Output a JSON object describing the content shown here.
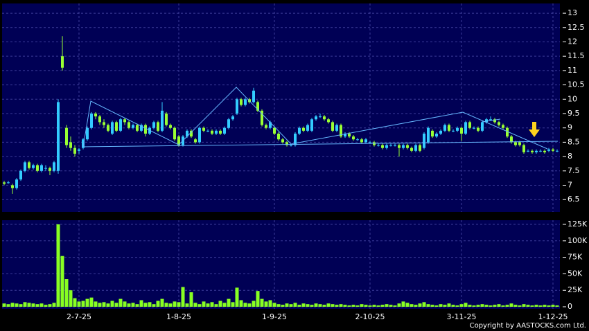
{
  "chart_data": [
    {
      "type": "candlestick",
      "up_color": "#33ccff",
      "down_color": "#99ff33",
      "grid": true,
      "ylim": [
        6.07,
        13.34
      ],
      "yticks": [
        6.5,
        7,
        7.5,
        8,
        8.5,
        9,
        9.5,
        10,
        10.5,
        11,
        11.5,
        12,
        12.5,
        13
      ],
      "ohlc": [
        [
          7.1,
          7.15,
          7.0,
          7.05
        ],
        [
          7.1,
          7.15,
          7.05,
          7.1
        ],
        [
          7.0,
          7.05,
          6.7,
          6.9
        ],
        [
          6.9,
          7.25,
          6.85,
          7.2
        ],
        [
          7.2,
          7.55,
          7.15,
          7.5
        ],
        [
          7.5,
          7.85,
          7.45,
          7.8
        ],
        [
          7.8,
          7.85,
          7.55,
          7.6
        ],
        [
          7.6,
          7.75,
          7.55,
          7.7
        ],
        [
          7.7,
          7.75,
          7.45,
          7.5
        ],
        [
          7.5,
          7.75,
          7.45,
          7.7
        ],
        [
          7.6,
          7.7,
          7.5,
          7.6
        ],
        [
          7.6,
          7.65,
          7.35,
          7.5
        ],
        [
          7.5,
          7.85,
          7.45,
          7.8
        ],
        [
          7.5,
          10.0,
          7.4,
          9.9
        ],
        [
          11.5,
          12.2,
          11.0,
          11.1
        ],
        [
          9.0,
          9.1,
          8.3,
          8.4
        ],
        [
          8.5,
          8.7,
          8.2,
          8.3
        ],
        [
          8.3,
          8.4,
          8.0,
          8.1
        ],
        [
          8.2,
          8.3,
          8.1,
          8.25
        ],
        [
          8.3,
          8.65,
          8.25,
          8.6
        ],
        [
          8.6,
          9.05,
          8.55,
          9.0
        ],
        [
          9.0,
          9.55,
          8.95,
          9.5
        ],
        [
          9.5,
          9.55,
          9.3,
          9.4
        ],
        [
          9.4,
          9.45,
          9.1,
          9.2
        ],
        [
          9.2,
          9.3,
          9.0,
          9.1
        ],
        [
          9.1,
          9.15,
          8.85,
          8.9
        ],
        [
          8.8,
          9.25,
          8.75,
          9.2
        ],
        [
          9.2,
          9.25,
          8.85,
          8.9
        ],
        [
          8.9,
          9.35,
          8.85,
          9.3
        ],
        [
          9.3,
          9.35,
          9.1,
          9.2
        ],
        [
          9.2,
          9.25,
          8.95,
          9.0
        ],
        [
          9.0,
          9.15,
          8.95,
          9.1
        ],
        [
          9.1,
          9.15,
          8.85,
          8.9
        ],
        [
          8.9,
          9.15,
          8.85,
          9.1
        ],
        [
          9.1,
          9.15,
          8.7,
          8.8
        ],
        [
          8.8,
          9.05,
          8.75,
          9.0
        ],
        [
          9.0,
          9.25,
          8.95,
          9.2
        ],
        [
          9.2,
          9.25,
          8.85,
          8.9
        ],
        [
          8.9,
          9.9,
          8.85,
          9.6
        ],
        [
          9.5,
          9.55,
          9.05,
          9.1
        ],
        [
          9.1,
          9.15,
          8.95,
          9.0
        ],
        [
          9.0,
          9.05,
          8.55,
          8.6
        ],
        [
          8.7,
          8.75,
          8.35,
          8.4
        ],
        [
          8.4,
          8.75,
          8.35,
          8.7
        ],
        [
          8.7,
          8.95,
          8.65,
          8.9
        ],
        [
          8.9,
          8.95,
          8.65,
          8.7
        ],
        [
          8.6,
          8.65,
          8.45,
          8.5
        ],
        [
          8.5,
          9.05,
          8.45,
          9.0
        ],
        [
          9.0,
          9.05,
          8.85,
          8.9
        ],
        [
          8.9,
          8.95,
          8.85,
          8.9
        ],
        [
          8.9,
          8.95,
          8.75,
          8.8
        ],
        [
          8.8,
          8.95,
          8.75,
          8.9
        ],
        [
          8.9,
          8.95,
          8.75,
          8.8
        ],
        [
          8.8,
          9.05,
          8.75,
          9.0
        ],
        [
          9.0,
          9.35,
          8.95,
          9.3
        ],
        [
          9.3,
          9.45,
          9.25,
          9.4
        ],
        [
          9.5,
          10.05,
          9.45,
          10.0
        ],
        [
          10.0,
          10.05,
          9.75,
          9.8
        ],
        [
          9.8,
          10.05,
          9.75,
          10.0
        ],
        [
          10.0,
          10.05,
          9.85,
          9.9
        ],
        [
          9.9,
          10.4,
          9.85,
          10.3
        ],
        [
          9.9,
          9.95,
          9.55,
          9.6
        ],
        [
          9.6,
          9.65,
          9.05,
          9.1
        ],
        [
          9.1,
          9.15,
          8.95,
          9.0
        ],
        [
          9.0,
          9.25,
          8.95,
          9.2
        ],
        [
          9.0,
          9.05,
          8.75,
          8.8
        ],
        [
          8.8,
          8.85,
          8.55,
          8.6
        ],
        [
          8.6,
          8.65,
          8.45,
          8.5
        ],
        [
          8.5,
          8.55,
          8.35,
          8.4
        ],
        [
          8.4,
          8.45,
          8.35,
          8.4
        ],
        [
          8.4,
          8.85,
          8.35,
          8.8
        ],
        [
          8.8,
          9.05,
          8.75,
          9.0
        ],
        [
          9.0,
          9.05,
          8.85,
          8.9
        ],
        [
          8.9,
          9.15,
          8.85,
          9.1
        ],
        [
          8.9,
          9.35,
          8.85,
          9.3
        ],
        [
          9.3,
          9.45,
          9.25,
          9.4
        ],
        [
          9.4,
          9.5,
          9.35,
          9.4
        ],
        [
          9.4,
          9.45,
          9.25,
          9.3
        ],
        [
          9.3,
          9.35,
          9.15,
          9.2
        ],
        [
          9.2,
          9.25,
          8.85,
          8.9
        ],
        [
          8.9,
          9.15,
          8.85,
          9.1
        ],
        [
          9.1,
          9.15,
          8.65,
          8.7
        ],
        [
          8.7,
          8.85,
          8.65,
          8.8
        ],
        [
          8.8,
          8.85,
          8.65,
          8.7
        ],
        [
          8.7,
          8.75,
          8.55,
          8.6
        ],
        [
          8.6,
          8.65,
          8.55,
          8.6
        ],
        [
          8.6,
          8.65,
          8.45,
          8.5
        ],
        [
          8.5,
          8.65,
          8.45,
          8.6
        ],
        [
          8.5,
          8.55,
          8.45,
          8.5
        ],
        [
          8.5,
          8.55,
          8.35,
          8.4
        ],
        [
          8.4,
          8.45,
          8.35,
          8.4
        ],
        [
          8.4,
          8.45,
          8.25,
          8.3
        ],
        [
          8.3,
          8.45,
          8.25,
          8.4
        ],
        [
          8.4,
          8.45,
          8.35,
          8.4
        ],
        [
          8.4,
          8.45,
          8.35,
          8.4
        ],
        [
          8.4,
          8.45,
          8.0,
          8.3
        ],
        [
          8.3,
          8.45,
          8.25,
          8.4
        ],
        [
          8.4,
          8.45,
          8.25,
          8.3
        ],
        [
          8.3,
          8.35,
          8.15,
          8.2
        ],
        [
          8.2,
          8.45,
          8.15,
          8.4
        ],
        [
          8.4,
          8.45,
          8.15,
          8.2
        ],
        [
          8.3,
          8.85,
          8.25,
          8.8
        ],
        [
          8.5,
          9.05,
          8.45,
          9.0
        ],
        [
          8.9,
          8.95,
          8.65,
          8.7
        ],
        [
          8.7,
          8.85,
          8.65,
          8.8
        ],
        [
          8.8,
          8.95,
          8.75,
          8.9
        ],
        [
          8.9,
          9.15,
          8.85,
          9.1
        ],
        [
          9.1,
          9.15,
          8.85,
          8.9
        ],
        [
          8.9,
          8.95,
          8.85,
          8.9
        ],
        [
          8.9,
          9.05,
          8.85,
          9.0
        ],
        [
          9.0,
          9.05,
          8.55,
          8.8
        ],
        [
          8.8,
          9.25,
          8.75,
          9.2
        ],
        [
          9.2,
          9.25,
          8.95,
          9.0
        ],
        [
          9.0,
          9.05,
          8.95,
          9.0
        ],
        [
          9.0,
          9.05,
          8.85,
          8.9
        ],
        [
          8.9,
          9.25,
          8.85,
          9.2
        ],
        [
          9.2,
          9.35,
          9.15,
          9.3
        ],
        [
          9.3,
          9.4,
          9.25,
          9.3
        ],
        [
          9.3,
          9.35,
          9.15,
          9.2
        ],
        [
          9.2,
          9.25,
          9.05,
          9.1
        ],
        [
          9.1,
          9.15,
          8.95,
          9.0
        ],
        [
          9.0,
          9.05,
          8.65,
          8.7
        ],
        [
          8.7,
          8.75,
          8.45,
          8.5
        ],
        [
          8.5,
          8.55,
          8.35,
          8.4
        ],
        [
          8.5,
          8.55,
          8.35,
          8.4
        ],
        [
          8.4,
          8.45,
          8.1,
          8.15
        ],
        [
          8.2,
          8.25,
          8.15,
          8.2
        ],
        [
          8.2,
          8.25,
          8.1,
          8.15
        ],
        [
          8.15,
          8.25,
          8.1,
          8.2
        ],
        [
          8.2,
          8.25,
          8.15,
          8.2
        ],
        [
          8.2,
          8.25,
          8.1,
          8.15
        ],
        [
          8.2,
          8.3,
          8.15,
          8.25
        ],
        [
          8.25,
          8.3,
          8.15,
          8.2
        ],
        [
          8.2,
          8.25,
          8.15,
          8.2
        ]
      ]
    },
    {
      "type": "bar",
      "color": "#88ff22",
      "grid": true,
      "ylim": [
        -3150,
        131300
      ],
      "yticks": [
        0,
        {
          "value": 25000,
          "label": "25K"
        },
        {
          "value": 50000,
          "label": "50K"
        },
        {
          "value": 75000,
          "label": "75K"
        },
        {
          "value": 100000,
          "label": "100K"
        },
        {
          "value": 125000,
          "label": "125K"
        }
      ],
      "categories": [
        null,
        null,
        null,
        null,
        null,
        null,
        null,
        null,
        null,
        null,
        null,
        null,
        null,
        null,
        null,
        null,
        null,
        null,
        "2-7-25",
        null,
        null,
        null,
        null,
        null,
        null,
        null,
        null,
        null,
        null,
        null,
        null,
        null,
        null,
        null,
        null,
        null,
        null,
        null,
        null,
        null,
        null,
        null,
        "1-8-25",
        null,
        null,
        null,
        null,
        null,
        null,
        null,
        null,
        null,
        null,
        null,
        null,
        null,
        null,
        null,
        null,
        null,
        null,
        null,
        null,
        null,
        null,
        "1-9-25",
        null,
        null,
        null,
        null,
        null,
        null,
        null,
        null,
        null,
        null,
        null,
        null,
        null,
        null,
        null,
        null,
        null,
        null,
        null,
        null,
        null,
        null,
        "2-10-25",
        null,
        null,
        null,
        null,
        null,
        null,
        null,
        null,
        null,
        null,
        null,
        null,
        null,
        null,
        null,
        null,
        null,
        null,
        null,
        null,
        null,
        "3-11-25",
        null,
        null,
        null,
        null,
        null,
        null,
        null,
        null,
        null,
        null,
        null,
        null,
        null,
        null,
        null,
        null,
        null,
        null,
        null,
        null,
        null,
        "1-12-25",
        null
      ],
      "values": [
        5000,
        4000,
        6000,
        5000,
        4000,
        7000,
        6000,
        5000,
        4000,
        5000,
        3000,
        4000,
        6000,
        125000,
        77000,
        42000,
        25000,
        13000,
        8000,
        9000,
        12000,
        14000,
        8000,
        6000,
        7000,
        5000,
        9000,
        6000,
        12000,
        8000,
        5000,
        6000,
        4000,
        10000,
        6000,
        7000,
        4000,
        9000,
        12000,
        6000,
        5000,
        8000,
        7000,
        30000,
        5000,
        22000,
        6000,
        4000,
        8000,
        5000,
        7000,
        4000,
        9000,
        6000,
        12000,
        7000,
        29000,
        10000,
        6000,
        5000,
        9000,
        24000,
        12000,
        8000,
        10000,
        6000,
        4000,
        3000,
        5000,
        4000,
        6000,
        3000,
        5000,
        4000,
        3000,
        5000,
        4000,
        3000,
        5000,
        4000,
        3000,
        4000,
        3000,
        2000,
        3000,
        2000,
        4000,
        3000,
        2000,
        3000,
        2000,
        3000,
        4000,
        3000,
        2000,
        5000,
        8000,
        6000,
        4000,
        3000,
        5000,
        7000,
        4000,
        3000,
        2000,
        4000,
        3000,
        5000,
        3000,
        2000,
        4000,
        6000,
        3000,
        2000,
        3000,
        4000,
        3000,
        2000,
        3000,
        4000,
        2000,
        3000,
        5000,
        3000,
        2000,
        4000,
        3000,
        2000,
        3000,
        2000,
        3000,
        2000,
        3000,
        2000
      ]
    }
  ],
  "copyright": "Copyright by AASTOCKS.com Ltd."
}
